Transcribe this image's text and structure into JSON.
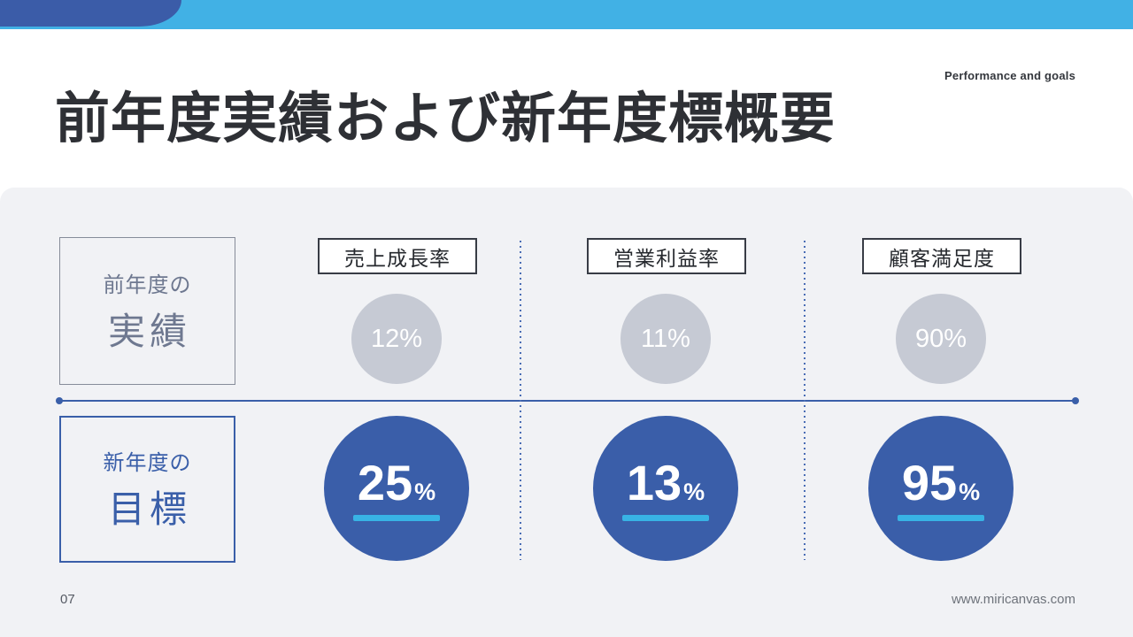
{
  "slide": {
    "eyebrow": "Performance and goals",
    "title": "前年度実績および新年度標概要",
    "page_number": "07",
    "website": "www.miricanvas.com"
  },
  "rows": {
    "previous": {
      "sub": "前年度の",
      "main": "実績"
    },
    "goal": {
      "sub": "新年度の",
      "main": "目標"
    }
  },
  "chart_data": {
    "type": "table",
    "title": "前年度実績および新年度標概要",
    "categories": [
      "売上成長率",
      "営業利益率",
      "顧客満足度"
    ],
    "series": [
      {
        "name": "前年度の実績",
        "values": [
          12,
          11,
          90
        ]
      },
      {
        "name": "新年度の目標",
        "values": [
          25,
          13,
          95
        ]
      }
    ],
    "unit": "%"
  },
  "metrics": {
    "columns": [
      {
        "label": "売上成長率",
        "previous": "12%",
        "target_number": "25",
        "target_unit": "%"
      },
      {
        "label": "営業利益率",
        "previous": "11%",
        "target_number": "13",
        "target_unit": "%"
      },
      {
        "label": "顧客満足度",
        "previous": "90%",
        "target_number": "95",
        "target_unit": "%"
      }
    ]
  },
  "colors": {
    "top_bar_light_blue": "#41b1e5",
    "top_pill_dark_blue": "#3b5ca8",
    "accent_blue": "#3a5fa9",
    "underline_cyan": "#38b3e5",
    "gray_circle": "#c6cad4",
    "panel_background": "#f1f2f5",
    "title_text": "#2e3035"
  }
}
